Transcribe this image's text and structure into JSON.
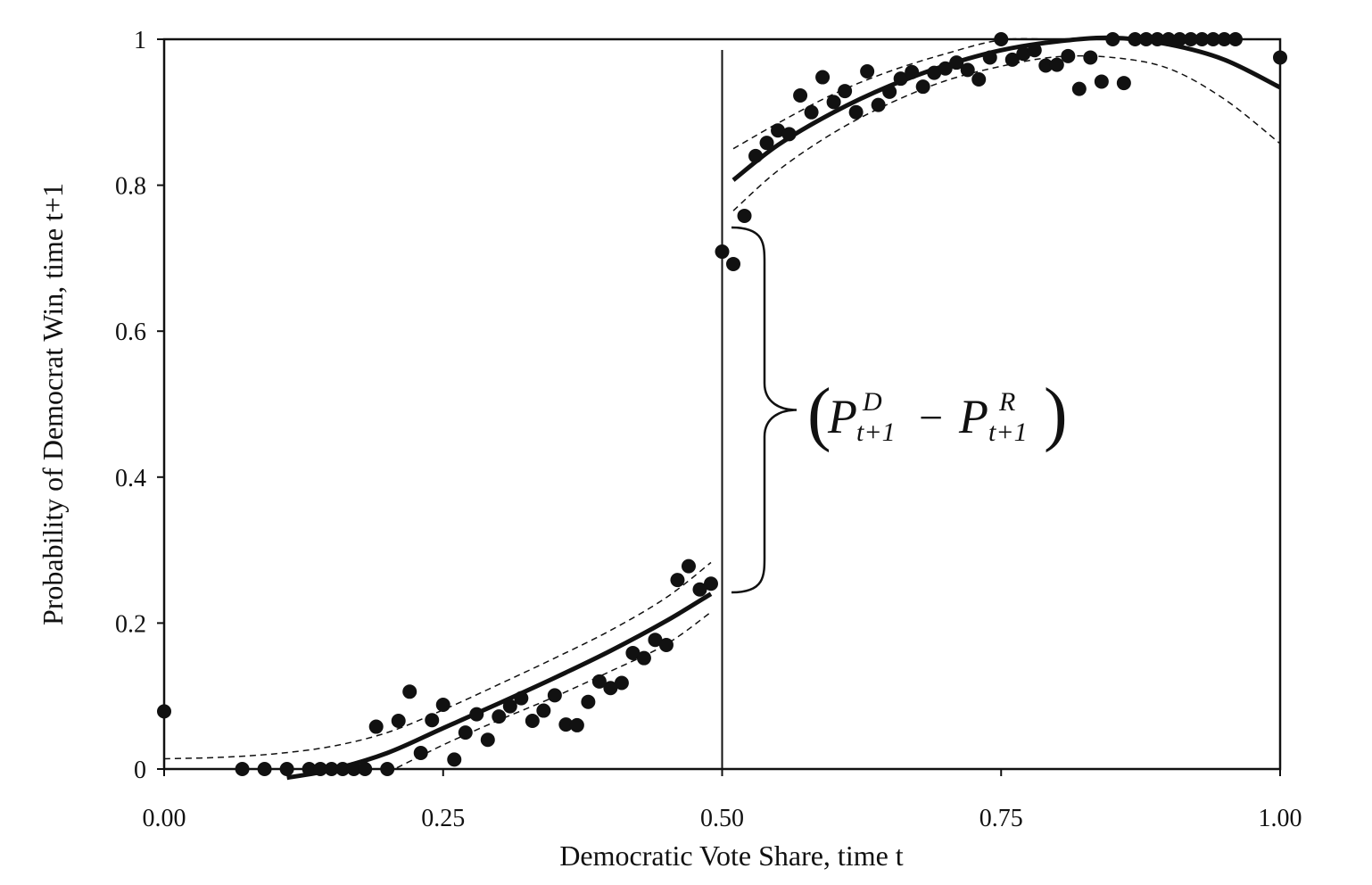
{
  "chart_data": {
    "type": "scatter",
    "title": "",
    "xlabel": "Democratic Vote Share, time t",
    "ylabel": "Probability of Democrat Win, time t+1",
    "xlim": [
      0,
      1
    ],
    "ylim": [
      0,
      1
    ],
    "x_ticks": [
      {
        "value": 0,
        "label": "0.00"
      },
      {
        "value": 0.25,
        "label": "0.25"
      },
      {
        "value": 0.5,
        "label": "0.50"
      },
      {
        "value": 0.75,
        "label": "0.75"
      },
      {
        "value": 1,
        "label": "1.00"
      }
    ],
    "y_ticks": [
      {
        "value": 0,
        "label": "0"
      },
      {
        "value": 0.2,
        "label": "0.2"
      },
      {
        "value": 0.4,
        "label": "0.4"
      },
      {
        "value": 0.6,
        "label": "0.6"
      },
      {
        "value": 0.8,
        "label": "0.8"
      },
      {
        "value": 1,
        "label": "1"
      }
    ],
    "grid": false,
    "legend": "none",
    "threshold_x": 0.5,
    "points": [
      [
        0.0,
        0.079
      ],
      [
        0.07,
        0.0
      ],
      [
        0.09,
        0.0
      ],
      [
        0.11,
        0.0
      ],
      [
        0.13,
        0.0
      ],
      [
        0.14,
        0.0
      ],
      [
        0.15,
        0.0
      ],
      [
        0.16,
        0.0
      ],
      [
        0.17,
        0.0
      ],
      [
        0.18,
        0.0
      ],
      [
        0.19,
        0.058
      ],
      [
        0.2,
        0.0
      ],
      [
        0.21,
        0.066
      ],
      [
        0.22,
        0.106
      ],
      [
        0.23,
        0.022
      ],
      [
        0.24,
        0.067
      ],
      [
        0.25,
        0.088
      ],
      [
        0.26,
        0.013
      ],
      [
        0.27,
        0.05
      ],
      [
        0.28,
        0.075
      ],
      [
        0.29,
        0.04
      ],
      [
        0.3,
        0.072
      ],
      [
        0.31,
        0.086
      ],
      [
        0.32,
        0.097
      ],
      [
        0.33,
        0.066
      ],
      [
        0.34,
        0.08
      ],
      [
        0.35,
        0.101
      ],
      [
        0.36,
        0.061
      ],
      [
        0.37,
        0.06
      ],
      [
        0.38,
        0.092
      ],
      [
        0.39,
        0.12
      ],
      [
        0.4,
        0.111
      ],
      [
        0.41,
        0.118
      ],
      [
        0.42,
        0.159
      ],
      [
        0.43,
        0.152
      ],
      [
        0.44,
        0.177
      ],
      [
        0.45,
        0.17
      ],
      [
        0.46,
        0.259
      ],
      [
        0.47,
        0.278
      ],
      [
        0.48,
        0.246
      ],
      [
        0.49,
        0.254
      ],
      [
        0.5,
        0.709
      ],
      [
        0.51,
        0.692
      ],
      [
        0.52,
        0.758
      ],
      [
        0.53,
        0.84
      ],
      [
        0.54,
        0.858
      ],
      [
        0.55,
        0.875
      ],
      [
        0.56,
        0.87
      ],
      [
        0.57,
        0.923
      ],
      [
        0.58,
        0.9
      ],
      [
        0.59,
        0.948
      ],
      [
        0.6,
        0.914
      ],
      [
        0.61,
        0.929
      ],
      [
        0.62,
        0.9
      ],
      [
        0.63,
        0.956
      ],
      [
        0.64,
        0.91
      ],
      [
        0.65,
        0.928
      ],
      [
        0.66,
        0.946
      ],
      [
        0.67,
        0.955
      ],
      [
        0.68,
        0.935
      ],
      [
        0.69,
        0.954
      ],
      [
        0.7,
        0.96
      ],
      [
        0.71,
        0.968
      ],
      [
        0.72,
        0.958
      ],
      [
        0.73,
        0.945
      ],
      [
        0.74,
        0.975
      ],
      [
        0.75,
        1.0
      ],
      [
        0.76,
        0.972
      ],
      [
        0.77,
        0.98
      ],
      [
        0.78,
        0.985
      ],
      [
        0.79,
        0.964
      ],
      [
        0.8,
        0.965
      ],
      [
        0.81,
        0.977
      ],
      [
        0.82,
        0.932
      ],
      [
        0.83,
        0.975
      ],
      [
        0.84,
        0.942
      ],
      [
        0.85,
        1.0
      ],
      [
        0.86,
        0.94
      ],
      [
        0.87,
        1.0
      ],
      [
        0.88,
        1.0
      ],
      [
        0.89,
        1.0
      ],
      [
        0.9,
        1.0
      ],
      [
        0.91,
        1.0
      ],
      [
        0.92,
        1.0
      ],
      [
        0.93,
        1.0
      ],
      [
        0.94,
        1.0
      ],
      [
        0.95,
        1.0
      ],
      [
        0.96,
        1.0
      ],
      [
        1.0,
        0.975
      ]
    ],
    "fit_left": [
      [
        0.11,
        -0.012
      ],
      [
        0.15,
        -0.001
      ],
      [
        0.2,
        0.022
      ],
      [
        0.25,
        0.056
      ],
      [
        0.3,
        0.09
      ],
      [
        0.35,
        0.125
      ],
      [
        0.4,
        0.162
      ],
      [
        0.45,
        0.203
      ],
      [
        0.49,
        0.24
      ]
    ],
    "ci_left_upper": [
      [
        0.0,
        0.014
      ],
      [
        0.05,
        0.016
      ],
      [
        0.1,
        0.021
      ],
      [
        0.15,
        0.031
      ],
      [
        0.2,
        0.05
      ],
      [
        0.25,
        0.081
      ],
      [
        0.3,
        0.116
      ],
      [
        0.35,
        0.152
      ],
      [
        0.4,
        0.19
      ],
      [
        0.45,
        0.235
      ],
      [
        0.49,
        0.283
      ]
    ],
    "ci_left_lower": [
      [
        0.2,
        -0.005
      ],
      [
        0.25,
        0.033
      ],
      [
        0.3,
        0.067
      ],
      [
        0.35,
        0.099
      ],
      [
        0.4,
        0.134
      ],
      [
        0.45,
        0.171
      ],
      [
        0.49,
        0.215
      ]
    ],
    "fit_right": [
      [
        0.51,
        0.807
      ],
      [
        0.55,
        0.855
      ],
      [
        0.6,
        0.9
      ],
      [
        0.65,
        0.936
      ],
      [
        0.7,
        0.964
      ],
      [
        0.75,
        0.985
      ],
      [
        0.8,
        0.997
      ],
      [
        0.85,
        1.002
      ],
      [
        0.9,
        0.993
      ],
      [
        0.95,
        0.972
      ],
      [
        1.0,
        0.934
      ]
    ],
    "ci_right_upper": [
      [
        0.51,
        0.85
      ],
      [
        0.55,
        0.885
      ],
      [
        0.6,
        0.925
      ],
      [
        0.65,
        0.956
      ],
      [
        0.7,
        0.98
      ],
      [
        0.75,
        0.999
      ],
      [
        0.8,
        1.0
      ],
      [
        0.85,
        1.0
      ],
      [
        0.9,
        1.0
      ],
      [
        0.95,
        1.0
      ],
      [
        1.0,
        1.0
      ]
    ],
    "ci_right_lower": [
      [
        0.51,
        0.765
      ],
      [
        0.55,
        0.82
      ],
      [
        0.6,
        0.872
      ],
      [
        0.65,
        0.912
      ],
      [
        0.7,
        0.943
      ],
      [
        0.75,
        0.963
      ],
      [
        0.8,
        0.976
      ],
      [
        0.85,
        0.975
      ],
      [
        0.9,
        0.96
      ],
      [
        0.95,
        0.918
      ],
      [
        1.0,
        0.857
      ]
    ],
    "annotation": {
      "brace_y_range": [
        0.242,
        0.742
      ],
      "text_P": "P",
      "sup_left": "D",
      "sub_left": "t+1",
      "minus": "−",
      "sup_right": "R",
      "sub_right": "t+1"
    }
  }
}
